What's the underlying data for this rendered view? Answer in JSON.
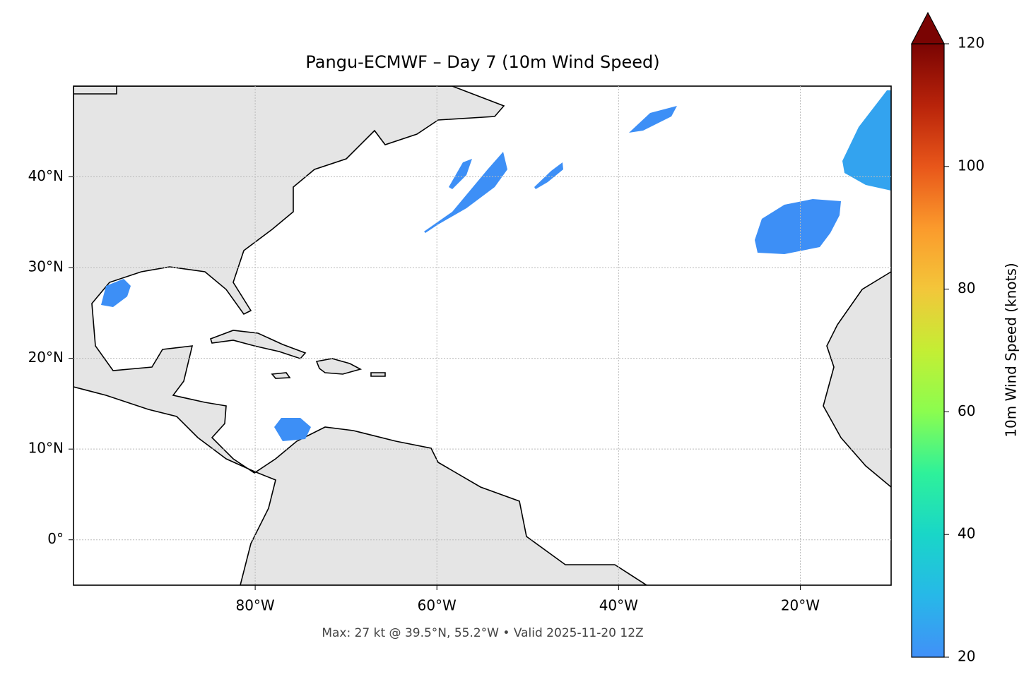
{
  "chart_data": {
    "type": "map",
    "title": "Pangu-ECMWF – Day 7 (10m Wind Speed)",
    "footnote": "Max: 27 kt @ 39.5°N, 55.2°W • Valid 2025-11-20 12Z",
    "xlim": [
      -100,
      -10
    ],
    "ylim": [
      -5,
      50
    ],
    "xticks": [
      {
        "value": -80,
        "label": "80°W"
      },
      {
        "value": -60,
        "label": "60°W"
      },
      {
        "value": -40,
        "label": "40°W"
      },
      {
        "value": -20,
        "label": "20°W"
      }
    ],
    "yticks": [
      {
        "value": 0,
        "label": "0°"
      },
      {
        "value": 10,
        "label": "10°N"
      },
      {
        "value": 20,
        "label": "20°N"
      },
      {
        "value": 30,
        "label": "30°N"
      },
      {
        "value": 40,
        "label": "40°N"
      }
    ],
    "grid": true,
    "colorbar": {
      "label": "10m Wind Speed (knots)",
      "lim": [
        20,
        120
      ],
      "ticks": [
        20,
        40,
        60,
        80,
        100,
        120
      ]
    }
  }
}
